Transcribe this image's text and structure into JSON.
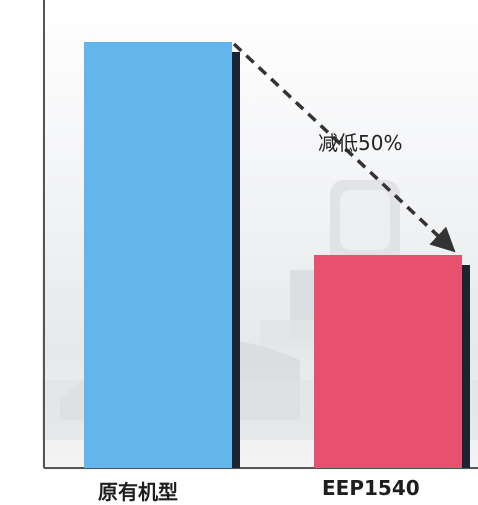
{
  "chart_data": {
    "type": "bar",
    "categories": [
      "原有机型",
      "EEP1540"
    ],
    "values": [
      100,
      50
    ],
    "ylim": [
      0,
      100
    ],
    "grid": false,
    "annotation": "减低50%",
    "colors": {
      "bar_1": "#63b6ec",
      "bar_2": "#e7506f",
      "bar_shadow": "#1a2530",
      "axis": "#555555",
      "arrow": "#333333"
    }
  }
}
